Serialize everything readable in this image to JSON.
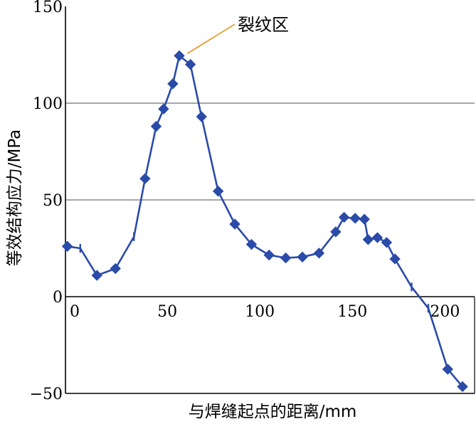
{
  "chart_data": {
    "type": "line",
    "xlabel": "与焊缝起点的距离/mm",
    "ylabel": "等效结构应力/MPa",
    "xlim": [
      -5,
      216
    ],
    "ylim": [
      -50,
      150
    ],
    "x_ticks": [
      {
        "value": 0,
        "label": "0"
      },
      {
        "value": 50,
        "label": "50"
      },
      {
        "value": 100,
        "label": "100"
      },
      {
        "value": 150,
        "label": "150"
      },
      {
        "value": 200,
        "label": "200"
      }
    ],
    "y_ticks": [
      {
        "value": 150,
        "label": "150"
      },
      {
        "value": 100,
        "label": "100"
      },
      {
        "value": 50,
        "label": "50"
      },
      {
        "value": 0,
        "label": "0"
      },
      {
        "value": -50,
        "label": "−50"
      }
    ],
    "gridlines_y": [
      50,
      100
    ],
    "series": [
      {
        "color": "#2b4ba8",
        "points": [
          {
            "x": -4,
            "y": 26,
            "marker": "diamond"
          },
          {
            "x": 3,
            "y": 25,
            "marker": "tick"
          },
          {
            "x": 12,
            "y": 11,
            "marker": "diamond"
          },
          {
            "x": 22,
            "y": 14.5,
            "marker": "diamond"
          },
          {
            "x": 32,
            "y": 31,
            "marker": "tick"
          },
          {
            "x": 38,
            "y": 61,
            "marker": "diamond"
          },
          {
            "x": 44,
            "y": 88,
            "marker": "diamond"
          },
          {
            "x": 48,
            "y": 97,
            "marker": "diamond"
          },
          {
            "x": 53,
            "y": 110,
            "marker": "diamond"
          },
          {
            "x": 56.5,
            "y": 124.5,
            "marker": "diamond"
          },
          {
            "x": 62.5,
            "y": 120,
            "marker": "diamond"
          },
          {
            "x": 68.5,
            "y": 93,
            "marker": "diamond"
          },
          {
            "x": 77.5,
            "y": 54.5,
            "marker": "diamond"
          },
          {
            "x": 86.5,
            "y": 37.5,
            "marker": "diamond"
          },
          {
            "x": 95.5,
            "y": 27,
            "marker": "diamond"
          },
          {
            "x": 105,
            "y": 21.5,
            "marker": "diamond"
          },
          {
            "x": 114,
            "y": 20,
            "marker": "diamond"
          },
          {
            "x": 123,
            "y": 20.5,
            "marker": "diamond"
          },
          {
            "x": 132,
            "y": 22.5,
            "marker": "diamond"
          },
          {
            "x": 141,
            "y": 33.5,
            "marker": "diamond"
          },
          {
            "x": 145.5,
            "y": 41,
            "marker": "diamond"
          },
          {
            "x": 151.5,
            "y": 40.5,
            "marker": "diamond"
          },
          {
            "x": 156.5,
            "y": 40,
            "marker": "diamond"
          },
          {
            "x": 158.5,
            "y": 29.5,
            "marker": "diamond"
          },
          {
            "x": 163.5,
            "y": 30.5,
            "marker": "diamond"
          },
          {
            "x": 168.5,
            "y": 28,
            "marker": "diamond"
          },
          {
            "x": 173,
            "y": 19.5,
            "marker": "diamond"
          },
          {
            "x": 182,
            "y": 5,
            "marker": "tick"
          },
          {
            "x": 191,
            "y": -6,
            "marker": "tick"
          },
          {
            "x": 201.5,
            "y": -37.5,
            "marker": "diamond"
          },
          {
            "x": 209.5,
            "y": -46.5,
            "marker": "diamond"
          }
        ]
      }
    ],
    "annotations": [
      {
        "text": "裂纹区",
        "point_x": 60,
        "point_y": 124.5,
        "color": "#f08c14"
      }
    ]
  }
}
